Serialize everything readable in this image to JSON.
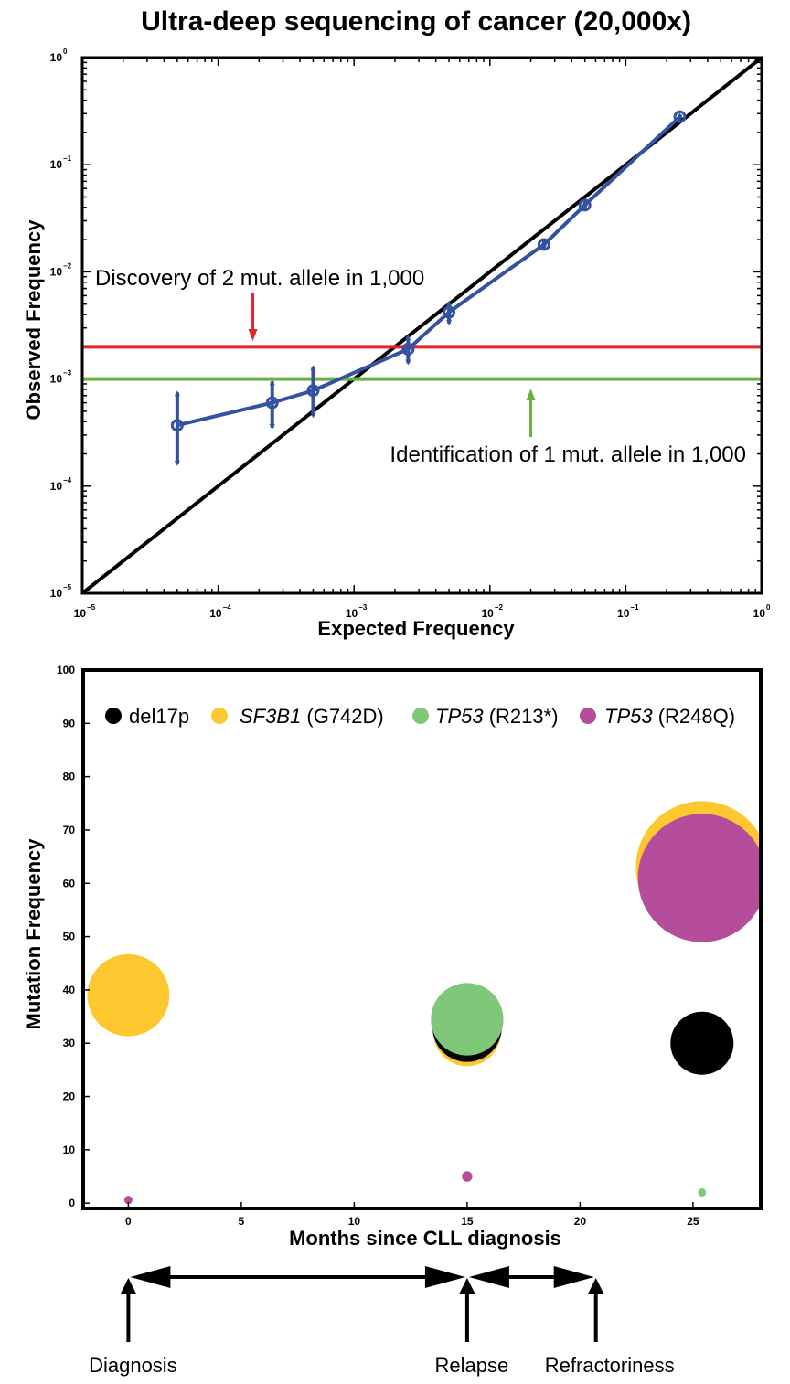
{
  "chart_data": [
    {
      "type": "line",
      "title": "Ultra-deep sequencing of cancer (20,000x)",
      "xlabel": "Expected Frequency",
      "ylabel": "Observed Frequency",
      "x_scale": "log",
      "y_scale": "log",
      "xlim": [
        1e-05,
        1
      ],
      "ylim": [
        1e-05,
        1
      ],
      "x_ticks": [
        {
          "base": "10",
          "exp": "−5"
        },
        {
          "base": "10",
          "exp": "−4"
        },
        {
          "base": "10",
          "exp": "−3"
        },
        {
          "base": "10",
          "exp": "−2"
        },
        {
          "base": "10",
          "exp": "−1"
        },
        {
          "base": "10",
          "exp": "0"
        }
      ],
      "y_ticks": [
        {
          "base": "10",
          "exp": "−5"
        },
        {
          "base": "10",
          "exp": "−4"
        },
        {
          "base": "10",
          "exp": "−3"
        },
        {
          "base": "10",
          "exp": "−2"
        },
        {
          "base": "10",
          "exp": "−1"
        },
        {
          "base": "10",
          "exp": "0"
        }
      ],
      "series": [
        {
          "color": "#3452a0",
          "x": [
            5e-05,
            0.00025,
            0.0005,
            0.0025,
            0.005,
            0.025,
            0.05,
            0.25
          ],
          "y": [
            0.00037,
            0.0006,
            0.00078,
            0.0019,
            0.0042,
            0.018,
            0.042,
            0.28
          ],
          "y_low": [
            0.00016,
            0.00035,
            0.00045,
            0.0014,
            0.0033,
            0.0165,
            0.039,
            0.265
          ],
          "y_high": [
            0.00075,
            0.00095,
            0.0013,
            0.0025,
            0.0052,
            0.0195,
            0.045,
            0.295
          ]
        }
      ],
      "reference_lines": [
        {
          "kind": "identity",
          "color": "#000000"
        },
        {
          "kind": "horizontal",
          "y": 0.002,
          "color": "#e0262b"
        },
        {
          "kind": "horizontal",
          "y": 0.001,
          "color": "#6ab13f"
        }
      ],
      "annotations": [
        {
          "text": "Discovery of 2 mut. allele in 1,000",
          "color": "#e0262b",
          "arrow_x": 0.00018,
          "arrow_dir": "down"
        },
        {
          "text": "Identification of 1 mut. allele in 1,000",
          "color": "#6ab13f",
          "arrow_x": 0.02,
          "arrow_dir": "up"
        }
      ],
      "grid": false
    },
    {
      "type": "scatter",
      "xlabel": "Months since CLL diagnosis",
      "ylabel": "Mutation Frequency",
      "xlim": [
        -2,
        28
      ],
      "ylim": [
        -1,
        100
      ],
      "x_ticks": [
        0,
        5,
        10,
        15,
        20,
        25
      ],
      "y_ticks": [
        0,
        10,
        20,
        30,
        40,
        50,
        60,
        70,
        80,
        90,
        100
      ],
      "legend_position": "top",
      "series": [
        {
          "name": "del17p",
          "color": "#000000",
          "points": [
            {
              "x": 15,
              "y": 33
            },
            {
              "x": 25.4,
              "y": 30
            }
          ]
        },
        {
          "name": "SF3B1",
          "name_suffix": "(G742D)",
          "name_italic": true,
          "color": "#fdc82f",
          "points": [
            {
              "x": 0,
              "y": 39
            },
            {
              "x": 15,
              "y": 32
            },
            {
              "x": 25.4,
              "y": 63
            }
          ]
        },
        {
          "name": "TP53",
          "name_suffix": "(R213*)",
          "name_italic": true,
          "color": "#7fc87a",
          "points": [
            {
              "x": 15,
              "y": 34.5
            },
            {
              "x": 25.4,
              "y": 2
            }
          ]
        },
        {
          "name": "TP53",
          "name_suffix": "(R248Q)",
          "name_italic": true,
          "color": "#b64c9c",
          "points": [
            {
              "x": 0,
              "y": 0.6
            },
            {
              "x": 15,
              "y": 5
            },
            {
              "x": 25.4,
              "y": 61
            }
          ]
        }
      ],
      "grid": false
    }
  ],
  "timeline": {
    "events": [
      {
        "label": "Diagnosis",
        "month": 0
      },
      {
        "label": "Relapse",
        "month": 15
      },
      {
        "label": "Refractoriness",
        "month": 20.7
      }
    ]
  }
}
